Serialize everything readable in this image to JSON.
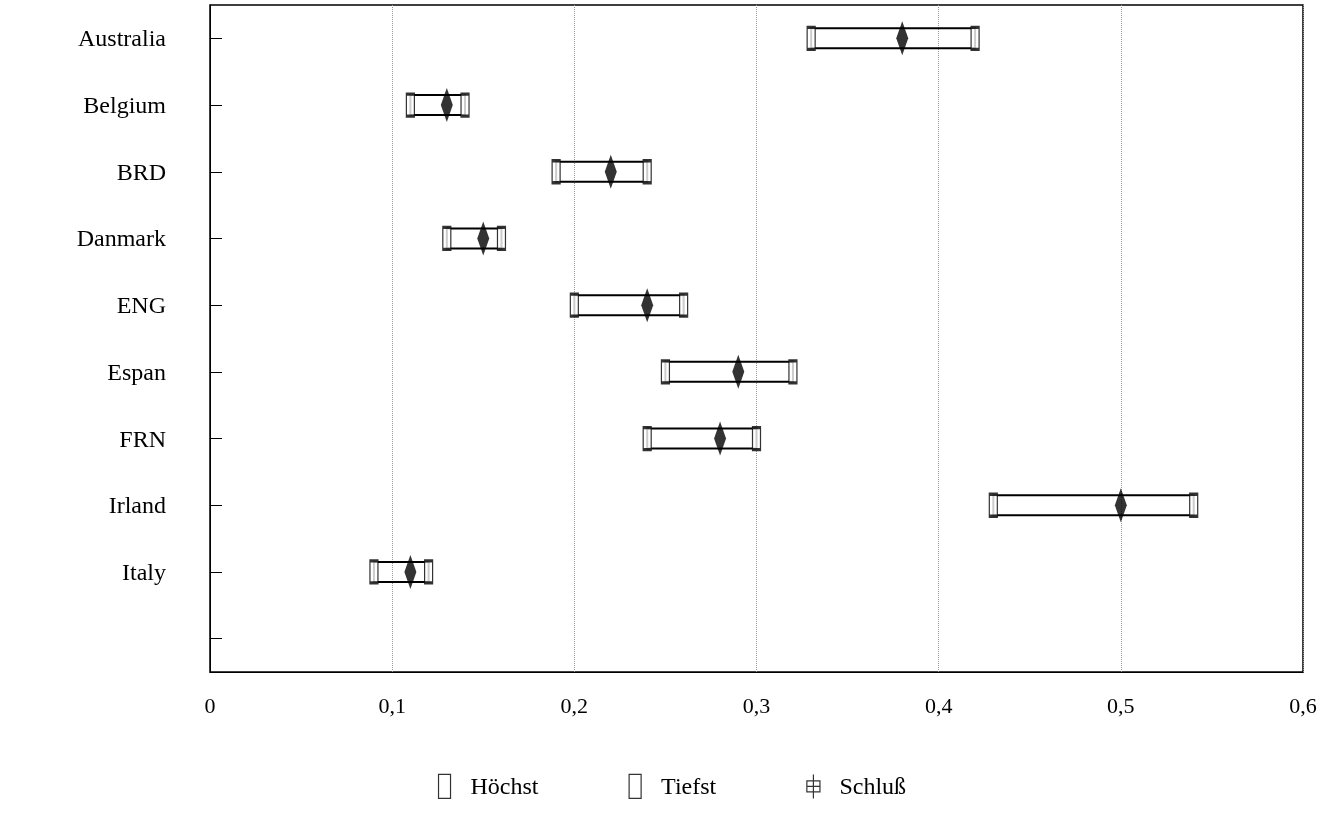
{
  "chart_data": {
    "type": "scatter",
    "orientation": "horizontal",
    "categories": [
      "Australia",
      "Belgium",
      "BRD",
      "Danmark",
      "ENG",
      "Espan",
      "FRN",
      "Irland",
      "Italy",
      null
    ],
    "series": [
      {
        "name": "Höchst",
        "color": "#000000",
        "values": [
          0.42,
          0.14,
          0.24,
          0.16,
          0.26,
          0.32,
          0.3,
          0.54,
          0.12,
          null
        ]
      },
      {
        "name": "Tiefst",
        "color": "#000000",
        "values": [
          0.33,
          0.11,
          0.19,
          0.13,
          0.2,
          0.25,
          0.24,
          0.43,
          0.09,
          null
        ]
      },
      {
        "name": "Schluß",
        "color": "#000000",
        "values": [
          0.38,
          0.13,
          0.22,
          0.15,
          0.24,
          0.29,
          0.28,
          0.5,
          0.11,
          null
        ]
      }
    ],
    "xlim": [
      0,
      0.6
    ],
    "xticks": [
      {
        "value": 0,
        "label": "0"
      },
      {
        "value": 0.1,
        "label": "0,1"
      },
      {
        "value": 0.2,
        "label": "0,2"
      },
      {
        "value": 0.3,
        "label": "0,3"
      },
      {
        "value": 0.4,
        "label": "0,4"
      },
      {
        "value": 0.5,
        "label": "0,5"
      },
      {
        "value": 0.6,
        "label": "0,6"
      }
    ],
    "grid": "x",
    "legend": "bottom"
  }
}
